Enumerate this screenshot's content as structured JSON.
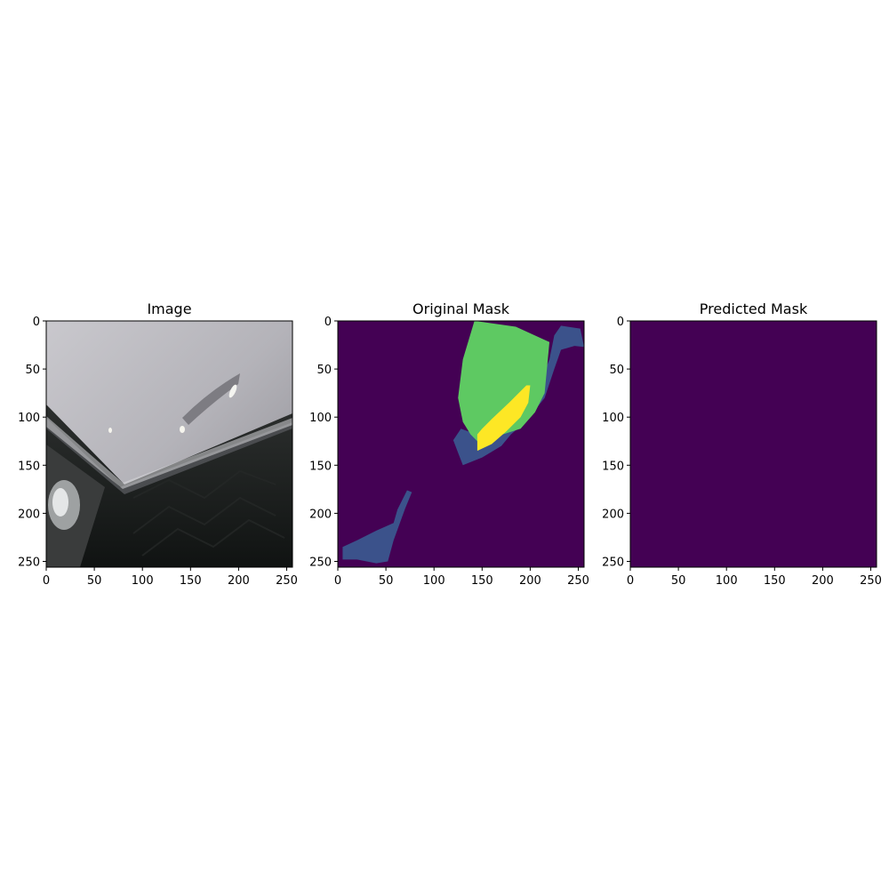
{
  "chart_data": [
    {
      "type": "image",
      "title": "Image",
      "xlabel": "",
      "ylabel": "",
      "xlim": [
        0,
        256
      ],
      "ylim": [
        256,
        0
      ],
      "xticks": [
        0,
        50,
        100,
        150,
        200,
        250
      ],
      "yticks": [
        0,
        50,
        100,
        150,
        200,
        250
      ],
      "content": "photo"
    },
    {
      "type": "heatmap",
      "title": "Original Mask",
      "xlabel": "",
      "ylabel": "",
      "xlim": [
        0,
        256
      ],
      "ylim": [
        256,
        0
      ],
      "xticks": [
        0,
        50,
        100,
        150,
        200,
        250
      ],
      "yticks": [
        0,
        50,
        100,
        150,
        200,
        250
      ],
      "colormap": "viridis",
      "background_color": "#440154",
      "regions": [
        {
          "class": 1,
          "color": "#3b528b",
          "points": [
            [
              5,
              235
            ],
            [
              5,
              248
            ],
            [
              20,
              248
            ],
            [
              40,
              252
            ],
            [
              52,
              250
            ],
            [
              58,
              228
            ],
            [
              70,
              195
            ],
            [
              77,
              178
            ],
            [
              72,
              176
            ],
            [
              62,
              196
            ],
            [
              58,
              210
            ],
            [
              40,
              218
            ],
            [
              20,
              228
            ]
          ]
        },
        {
          "class": 1,
          "color": "#3b528b",
          "points": [
            [
              120,
              124
            ],
            [
              130,
              150
            ],
            [
              150,
              142
            ],
            [
              170,
              130
            ],
            [
              180,
              118
            ],
            [
              195,
              105
            ],
            [
              215,
              80
            ],
            [
              225,
              50
            ],
            [
              232,
              30
            ],
            [
              246,
              26
            ],
            [
              256,
              27
            ],
            [
              252,
              8
            ],
            [
              232,
              5
            ],
            [
              225,
              15
            ],
            [
              220,
              40
            ],
            [
              212,
              60
            ],
            [
              200,
              80
            ],
            [
              185,
              100
            ],
            [
              170,
              113
            ],
            [
              150,
              120
            ],
            [
              128,
              112
            ]
          ]
        },
        {
          "class": 2,
          "color": "#5ec962",
          "points": [
            [
              142,
              0
            ],
            [
              130,
              40
            ],
            [
              125,
              80
            ],
            [
              130,
              105
            ],
            [
              138,
              118
            ],
            [
              145,
              125
            ],
            [
              165,
              120
            ],
            [
              190,
              112
            ],
            [
              205,
              95
            ],
            [
              215,
              75
            ],
            [
              220,
              22
            ],
            [
              185,
              6
            ],
            [
              150,
              1
            ]
          ]
        },
        {
          "class": 3,
          "color": "#fde725",
          "points": [
            [
              145,
              118
            ],
            [
              145,
              135
            ],
            [
              160,
              128
            ],
            [
              175,
              115
            ],
            [
              190,
              100
            ],
            [
              198,
              85
            ],
            [
              200,
              67
            ],
            [
              196,
              67
            ],
            [
              178,
              85
            ],
            [
              160,
              102
            ],
            [
              150,
              112
            ]
          ]
        }
      ]
    },
    {
      "type": "heatmap",
      "title": "Predicted Mask",
      "xlabel": "",
      "ylabel": "",
      "xlim": [
        0,
        256
      ],
      "ylim": [
        256,
        0
      ],
      "xticks": [
        0,
        50,
        100,
        150,
        200,
        250
      ],
      "yticks": [
        0,
        50,
        100,
        150,
        200,
        250
      ],
      "colormap": "viridis",
      "background_color": "#440154",
      "regions": []
    }
  ]
}
